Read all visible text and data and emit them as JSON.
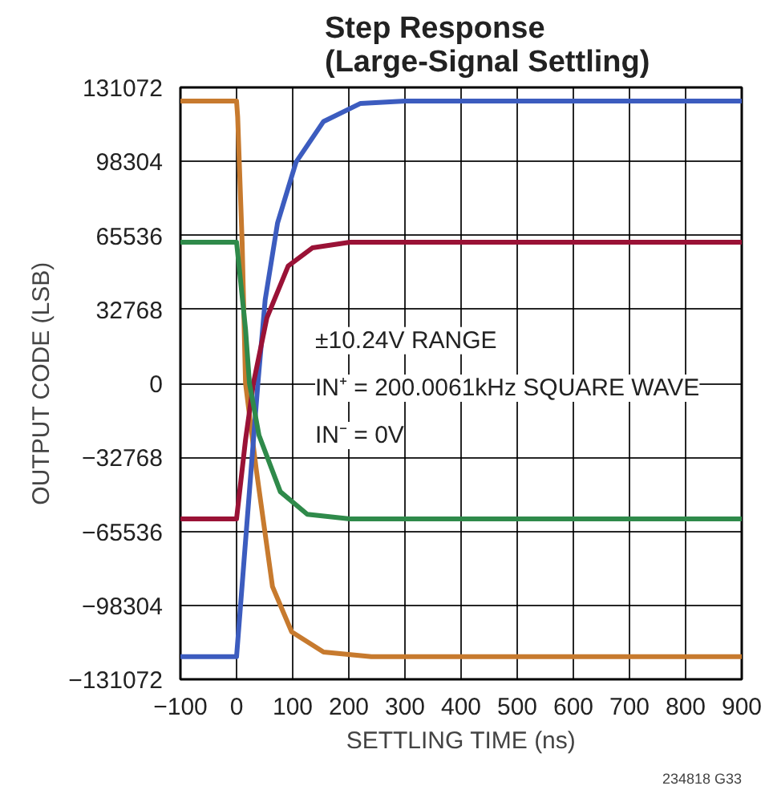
{
  "chart_data": {
    "type": "line",
    "title": "Step Response\n(Large-Signal Settling)",
    "xlabel": "SETTLING TIME (ns)",
    "ylabel": "OUTPUT CODE (LSB)",
    "xlim": [
      -100,
      900
    ],
    "xticks": [
      -100,
      0,
      100,
      200,
      300,
      400,
      500,
      600,
      700,
      800,
      900
    ],
    "ylim": [
      -131072,
      131072
    ],
    "yticks": [
      -131072,
      -98304,
      -65536,
      -32768,
      0,
      32768,
      65536,
      98304,
      131072
    ],
    "grid": true,
    "line_style": "solid",
    "marker": "none",
    "annotations": [
      "±10.24V RANGE",
      "IN⁺ = 200.0061kHz SQUARE WAVE",
      "IN⁻ = 0V",
      "234818 G33"
    ],
    "series": [
      {
        "color": "#c77a2e",
        "x": [
          -100,
          0,
          2,
          10,
          16,
          35,
          64,
          98,
          155,
          240,
          900
        ],
        "values": [
          125000,
          125000,
          118000,
          62000,
          0,
          -38000,
          -90000,
          -110000,
          -119000,
          -121000,
          -121000
        ]
      },
      {
        "color": "#3c5cbf",
        "x": [
          -100,
          0,
          26,
          38,
          51,
          73,
          106,
          155,
          221,
          300,
          900
        ],
        "values": [
          -121000,
          -121000,
          -38000,
          0,
          37000,
          71000,
          98000,
          116000,
          124000,
          125000,
          125000
        ]
      },
      {
        "color": "#9a1236",
        "x": [
          -100,
          0,
          16,
          30,
          54,
          92,
          135,
          202,
          900
        ],
        "values": [
          -60000,
          -60000,
          -25000,
          0,
          29000,
          52000,
          60000,
          62500,
          62500
        ]
      },
      {
        "color": "#2f8a4a",
        "x": [
          -100,
          0,
          16,
          23,
          40,
          78,
          126,
          202,
          900
        ],
        "values": [
          62500,
          62500,
          24000,
          0,
          -23000,
          -48000,
          -58000,
          -60000,
          -60000
        ]
      }
    ]
  }
}
